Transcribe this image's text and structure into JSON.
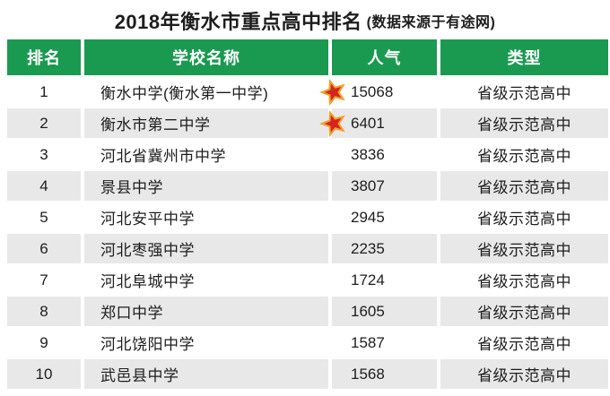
{
  "title": {
    "main": "2018年衡水市重点高中排名",
    "source": "(数据来源于有途网)"
  },
  "table": {
    "headers": [
      "排名",
      "学校名称",
      "人气",
      "类型"
    ],
    "rows": [
      {
        "rank": "1",
        "school": "衡水中学(衡水第一中学)",
        "popularity": "15068",
        "starred": true,
        "type": "省级示范高中"
      },
      {
        "rank": "2",
        "school": "衡水市第二中学",
        "popularity": "6401",
        "starred": true,
        "type": "省级示范高中"
      },
      {
        "rank": "3",
        "school": "河北省冀州市中学",
        "popularity": "3836",
        "starred": false,
        "type": "省级示范高中"
      },
      {
        "rank": "4",
        "school": "景县中学",
        "popularity": "3807",
        "starred": false,
        "type": "省级示范高中"
      },
      {
        "rank": "5",
        "school": "河北安平中学",
        "popularity": "2945",
        "starred": false,
        "type": "省级示范高中"
      },
      {
        "rank": "6",
        "school": "河北枣强中学",
        "popularity": "2235",
        "starred": false,
        "type": "省级示范高中"
      },
      {
        "rank": "7",
        "school": "河北阜城中学",
        "popularity": "1724",
        "starred": false,
        "type": "省级示范高中"
      },
      {
        "rank": "8",
        "school": "郑口中学",
        "popularity": "1605",
        "starred": false,
        "type": "省级示范高中"
      },
      {
        "rank": "9",
        "school": "河北饶阳中学",
        "popularity": "1587",
        "starred": false,
        "type": "省级示范高中"
      },
      {
        "rank": "10",
        "school": "武邑县中学",
        "popularity": "1568",
        "starred": false,
        "type": "省级示范高中"
      }
    ]
  },
  "colors": {
    "header_green": "#1a9a50",
    "row_gray": "#e8e8e8",
    "star_red": "#d6251d",
    "star_gold": "#f0a32e",
    "text": "#1d1d1d"
  },
  "icons": {
    "starred_rows": "star-icon"
  },
  "chart_data": {
    "type": "table",
    "title": "2018年衡水市重点高中排名",
    "subtitle": "数据来源于有途网",
    "columns": [
      "排名",
      "学校名称",
      "人气",
      "类型"
    ],
    "rows": [
      [
        1,
        "衡水中学(衡水第一中学)",
        15068,
        "省级示范高中"
      ],
      [
        2,
        "衡水市第二中学",
        6401,
        "省级示范高中"
      ],
      [
        3,
        "河北省冀州市中学",
        3836,
        "省级示范高中"
      ],
      [
        4,
        "景县中学",
        3807,
        "省级示范高中"
      ],
      [
        5,
        "河北安平中学",
        2945,
        "省级示范高中"
      ],
      [
        6,
        "河北枣强中学",
        2235,
        "省级示范高中"
      ],
      [
        7,
        "河北阜城中学",
        1724,
        "省级示范高中"
      ],
      [
        8,
        "郑口中学",
        1605,
        "省级示范高中"
      ],
      [
        9,
        "河北饶阳中学",
        1587,
        "省级示范高中"
      ],
      [
        10,
        "武邑县中学",
        1568,
        "省级示范高中"
      ]
    ],
    "notes": "rows 1 and 2 are marked with a red star icon before the popularity value"
  }
}
